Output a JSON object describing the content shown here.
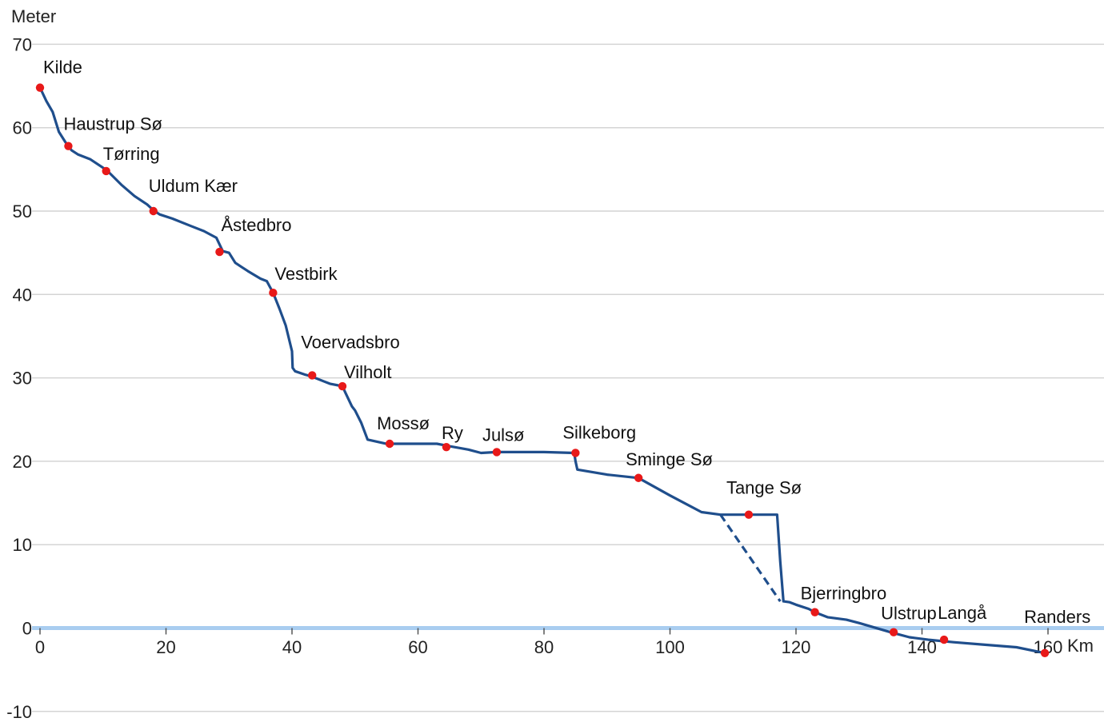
{
  "chart_data": {
    "type": "line",
    "ylabel": "Meter",
    "xlabel": "Km",
    "xlim": [
      0,
      160
    ],
    "ylim": [
      -10,
      70
    ],
    "x_ticks": [
      "0",
      "20",
      "40",
      "60",
      "80",
      "100",
      "120",
      "140",
      "160"
    ],
    "y_ticks": [
      "-10",
      "0",
      "10",
      "20",
      "30",
      "40",
      "50",
      "60",
      "70"
    ],
    "grid": "horizontal",
    "line_color": "#1f4e8c",
    "marker_color": "#e81919",
    "zero_line_color": "#a9cdf0",
    "series": [
      {
        "x": [
          0,
          1,
          2,
          3,
          4,
          4.5,
          5,
          6,
          8,
          10,
          11,
          13,
          15,
          17,
          18,
          19,
          21,
          24,
          26,
          28,
          29,
          30,
          31,
          32,
          33,
          35,
          36,
          37,
          38,
          39,
          40,
          40.1,
          40.5,
          42,
          43,
          45,
          46,
          48,
          48.5,
          49.5,
          50,
          51,
          52,
          55,
          60,
          63,
          65,
          68,
          70,
          72.5,
          75,
          80,
          84.8,
          85,
          85.3,
          90,
          95,
          100,
          105,
          108,
          110,
          113,
          117,
          117.5,
          118,
          119,
          120,
          122,
          123,
          125,
          128,
          130,
          135,
          138,
          141,
          145,
          150,
          155,
          159.5
        ],
        "y": [
          64.8,
          63.2,
          61.9,
          59.5,
          58.3,
          57.8,
          57.3,
          56.8,
          56.2,
          55.2,
          54.6,
          53.1,
          51.8,
          50.8,
          50.1,
          49.6,
          49.1,
          48.2,
          47.6,
          46.8,
          45.2,
          45.0,
          43.8,
          43.3,
          42.8,
          41.9,
          41.6,
          40.2,
          38.3,
          36.3,
          33.2,
          31.2,
          30.8,
          30.4,
          30.2,
          29.6,
          29.3,
          29.0,
          28.2,
          26.6,
          26.1,
          24.6,
          22.6,
          22.1,
          22.1,
          22.1,
          21.8,
          21.4,
          21.0,
          21.1,
          21.1,
          21.1,
          21.0,
          20.0,
          19.0,
          18.4,
          18.0,
          15.9,
          13.9,
          13.6,
          13.6,
          13.6,
          13.6,
          8.0,
          3.2,
          3.1,
          2.8,
          2.3,
          1.9,
          1.3,
          1.0,
          0.6,
          -0.5,
          -1.1,
          -1.4,
          -1.7,
          -2.0,
          -2.3,
          -3.0
        ]
      }
    ],
    "lake_bypass_dashed": {
      "x": [
        108,
        117.5
      ],
      "y": [
        13.6,
        3.2
      ]
    },
    "places": [
      {
        "name": "Kilde",
        "x": 0,
        "y": 64.8
      },
      {
        "name": "Haustrup Sø",
        "x": 4.5,
        "y": 57.8
      },
      {
        "name": "Tørring",
        "x": 10.5,
        "y": 54.8
      },
      {
        "name": "Uldum Kær",
        "x": 18,
        "y": 50.0
      },
      {
        "name": "Åstedbro",
        "x": 28.5,
        "y": 45.1
      },
      {
        "name": "Vestbirk",
        "x": 37,
        "y": 40.2
      },
      {
        "name": "Voervadsbro",
        "x": 43.2,
        "y": 30.3
      },
      {
        "name": "Vilholt",
        "x": 48,
        "y": 29.0
      },
      {
        "name": "Mossø",
        "x": 55.5,
        "y": 22.1
      },
      {
        "name": "Ry",
        "x": 64.5,
        "y": 21.7
      },
      {
        "name": "Julsø",
        "x": 72.5,
        "y": 21.1
      },
      {
        "name": "Silkeborg",
        "x": 85,
        "y": 21.0
      },
      {
        "name": "Sminge Sø",
        "x": 95,
        "y": 18.0
      },
      {
        "name": "Tange Sø",
        "x": 112.5,
        "y": 13.6
      },
      {
        "name": "Bjerringbro",
        "x": 123,
        "y": 1.9
      },
      {
        "name": "Ulstrup",
        "x": 135.5,
        "y": -0.5
      },
      {
        "name": "Langå",
        "x": 143.5,
        "y": -1.4
      },
      {
        "name": "Randers",
        "x": 159.5,
        "y": -3.0
      }
    ]
  }
}
